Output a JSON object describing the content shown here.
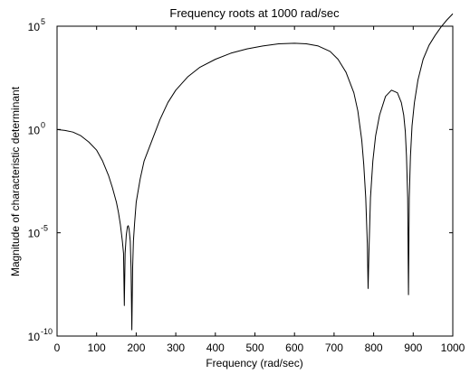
{
  "chart_data": {
    "type": "line",
    "title": "Frequency roots at 1000 rad/sec",
    "xlabel": "Frequency (rad/sec)",
    "ylabel": "Magnitude of characteristic determinant",
    "xlim": [
      0,
      1000
    ],
    "ylim": [
      1e-10,
      100000.0
    ],
    "yscale": "log",
    "grid": false,
    "x_ticks": [
      0,
      100,
      200,
      300,
      400,
      500,
      600,
      700,
      800,
      900,
      1000
    ],
    "y_ticks": [
      {
        "value": 1e-10,
        "base": "10",
        "exp": "-10"
      },
      {
        "value": 1e-05,
        "base": "10",
        "exp": "-5"
      },
      {
        "value": 1,
        "base": "10",
        "exp": "0"
      },
      {
        "value": 100000.0,
        "base": "10",
        "exp": "5"
      }
    ],
    "color": "#000000",
    "series": [
      {
        "x": [
          0,
          20,
          40,
          60,
          80,
          100,
          115,
          130,
          140,
          150,
          155,
          160,
          165,
          168,
          170,
          172,
          175,
          178,
          180,
          182,
          185,
          187,
          189,
          191,
          193,
          196,
          200,
          210,
          220,
          240,
          260,
          280,
          300,
          330,
          360,
          400,
          440,
          480,
          520,
          560,
          600,
          630,
          660,
          690,
          710,
          730,
          750,
          760,
          770,
          775,
          780,
          784,
          786,
          788,
          792,
          798,
          805,
          815,
          830,
          845,
          860,
          870,
          876,
          880,
          883,
          886,
          888,
          890,
          893,
          897,
          903,
          912,
          925,
          940,
          955,
          970,
          985,
          1000
        ],
        "y": [
          1.0,
          0.9,
          0.75,
          0.5,
          0.25,
          0.1,
          0.03,
          0.006,
          0.0015,
          0.0003,
          0.0001,
          2.5e-05,
          4e-06,
          1e-06,
          3e-09,
          1e-06,
          8e-06,
          2e-05,
          2.2e-05,
          1.5e-05,
          4e-06,
          2e-07,
          2e-10,
          2e-07,
          4e-06,
          3e-05,
          0.0003,
          0.004,
          0.03,
          0.3,
          3,
          20,
          80,
          350,
          1000,
          2500,
          5000,
          8000,
          11000,
          14000,
          15000,
          14000,
          11000,
          6000,
          2500,
          600,
          60,
          8,
          0.3,
          0.02,
          0.0005,
          3e-06,
          2e-08,
          1e-06,
          0.0005,
          0.03,
          0.5,
          5,
          40,
          80,
          60,
          20,
          5,
          0.8,
          0.05,
          0.0005,
          1e-08,
          0.0005,
          0.05,
          1.5,
          20,
          250,
          2500,
          12000,
          35000,
          90000,
          200000,
          400000
        ]
      }
    ]
  }
}
